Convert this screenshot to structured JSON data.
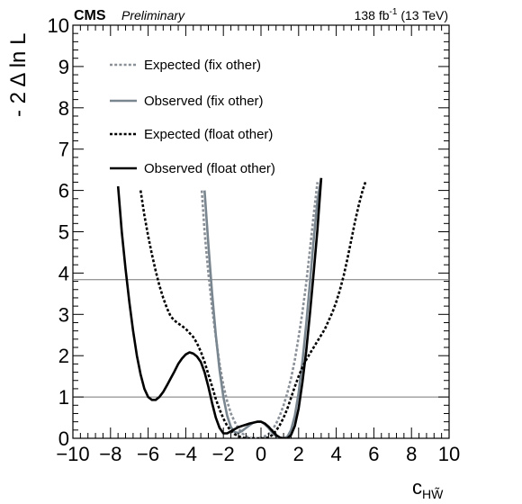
{
  "header": {
    "experiment": "CMS",
    "status": "Preliminary",
    "lumi_value": "138 fb",
    "lumi_exponent": "-1",
    "lumi_energy": " (13 TeV)"
  },
  "chart_data": {
    "type": "line",
    "title": "",
    "xlabel_base": "c",
    "xlabel_sub": "HW̃",
    "ylabel": "- 2 Δ ln L",
    "xlim": [
      -10,
      10
    ],
    "ylim": [
      0,
      10
    ],
    "x_major_ticks": [
      -10,
      -8,
      -6,
      -4,
      -2,
      0,
      2,
      4,
      6,
      8,
      10
    ],
    "x_tick_labels": [
      "−10",
      "−8",
      "−6",
      "−4",
      "−2",
      "0",
      "2",
      "4",
      "6",
      "8",
      "10"
    ],
    "y_major_ticks": [
      0,
      1,
      2,
      3,
      4,
      5,
      6,
      7,
      8,
      9,
      10
    ],
    "y_tick_labels": [
      "0",
      "1",
      "2",
      "3",
      "4",
      "5",
      "6",
      "7",
      "8",
      "9",
      "10"
    ],
    "reference_lines": [
      1.0,
      3.84
    ],
    "grid": false,
    "legend_position": "top-left",
    "series": [
      {
        "name": "Expected (fix other)",
        "color": "#8a9098",
        "style": "dotted",
        "x": [
          -3.15,
          -3.0,
          -2.8,
          -2.6,
          -2.4,
          -2.2,
          -2.0,
          -1.8,
          -1.6,
          -1.4,
          -1.2,
          -1.0,
          -0.8,
          -0.6,
          -0.4,
          -0.2,
          0.0,
          0.2,
          0.4,
          0.6,
          0.8,
          1.0,
          1.2,
          1.4,
          1.6,
          1.8,
          2.0,
          2.2,
          2.4,
          2.6,
          2.8,
          3.0
        ],
        "y": [
          6.0,
          5.0,
          4.0,
          3.15,
          2.45,
          1.8,
          1.28,
          0.9,
          0.6,
          0.4,
          0.24,
          0.12,
          0.05,
          0.01,
          0.0,
          0.0,
          0.01,
          0.05,
          0.1,
          0.2,
          0.35,
          0.55,
          0.8,
          1.1,
          1.45,
          1.9,
          2.45,
          3.05,
          3.75,
          4.55,
          5.4,
          6.2
        ]
      },
      {
        "name": "Observed (fix other)",
        "color": "#7a868f",
        "style": "solid",
        "x": [
          -3.0,
          -2.8,
          -2.6,
          -2.4,
          -2.2,
          -2.0,
          -1.8,
          -1.6,
          -1.4,
          -1.2,
          -1.0,
          -0.8,
          -0.6,
          -0.4,
          -0.2,
          0.0,
          0.2,
          0.4,
          0.6,
          0.8,
          1.0,
          1.2,
          1.4,
          1.6,
          1.8,
          2.0,
          2.2,
          2.4,
          2.6,
          2.8,
          3.0,
          3.2
        ],
        "y": [
          6.0,
          4.7,
          3.5,
          2.5,
          1.65,
          1.0,
          0.55,
          0.27,
          0.15,
          0.13,
          0.18,
          0.25,
          0.32,
          0.38,
          0.4,
          0.4,
          0.34,
          0.25,
          0.14,
          0.05,
          0.0,
          0.0,
          0.04,
          0.2,
          0.55,
          1.1,
          1.85,
          2.75,
          3.75,
          4.8,
          5.75,
          6.3
        ]
      },
      {
        "name": "Expected (float other)",
        "color": "#000000",
        "style": "dotted",
        "x": [
          -6.4,
          -6.2,
          -6.0,
          -5.8,
          -5.6,
          -5.4,
          -5.2,
          -5.0,
          -4.8,
          -4.6,
          -4.4,
          -4.2,
          -4.0,
          -3.8,
          -3.6,
          -3.4,
          -3.2,
          -3.0,
          -2.8,
          -2.6,
          -2.4,
          -2.2,
          -2.0,
          -1.8,
          -1.6,
          -1.4,
          -1.2,
          -1.0,
          -0.8,
          -0.6,
          -0.4,
          -0.2,
          0.0,
          0.2,
          0.4,
          0.6,
          0.8,
          1.0,
          1.2,
          1.4,
          1.6,
          1.8,
          2.0,
          2.2,
          2.4,
          2.6,
          2.8,
          3.0,
          3.2,
          3.4,
          3.6,
          3.8,
          4.0,
          4.2,
          4.4,
          4.6,
          4.8,
          5.0,
          5.2,
          5.4,
          5.55
        ],
        "y": [
          6.0,
          5.4,
          4.9,
          4.45,
          4.05,
          3.7,
          3.4,
          3.15,
          2.95,
          2.85,
          2.78,
          2.72,
          2.65,
          2.55,
          2.45,
          2.3,
          2.1,
          1.85,
          1.55,
          1.25,
          0.95,
          0.7,
          0.48,
          0.3,
          0.18,
          0.1,
          0.05,
          0.02,
          0.0,
          0.0,
          0.0,
          0.0,
          0.0,
          0.0,
          0.02,
          0.08,
          0.18,
          0.32,
          0.5,
          0.72,
          0.98,
          1.25,
          1.5,
          1.72,
          1.9,
          2.05,
          2.2,
          2.35,
          2.5,
          2.65,
          2.85,
          3.05,
          3.3,
          3.6,
          3.95,
          4.35,
          4.8,
          5.25,
          5.65,
          6.0,
          6.2
        ]
      },
      {
        "name": "Observed (float other)",
        "color": "#000000",
        "style": "solid",
        "x": [
          -7.6,
          -7.4,
          -7.2,
          -7.0,
          -6.8,
          -6.6,
          -6.4,
          -6.2,
          -6.0,
          -5.8,
          -5.6,
          -5.4,
          -5.2,
          -5.0,
          -4.8,
          -4.6,
          -4.4,
          -4.2,
          -4.0,
          -3.8,
          -3.6,
          -3.4,
          -3.2,
          -3.0,
          -2.8,
          -2.6,
          -2.4,
          -2.2,
          -2.0,
          -1.8,
          -1.6,
          -1.4,
          -1.2,
          -1.0,
          -0.8,
          -0.6,
          -0.4,
          -0.2,
          0.0,
          0.2,
          0.4,
          0.6,
          0.8,
          1.0,
          1.2,
          1.4,
          1.6,
          1.8,
          2.0,
          2.2,
          2.4,
          2.6,
          2.8,
          3.0,
          3.2
        ],
        "y": [
          6.1,
          5.0,
          4.1,
          3.3,
          2.6,
          2.0,
          1.55,
          1.2,
          1.0,
          0.93,
          0.93,
          1.0,
          1.12,
          1.28,
          1.45,
          1.62,
          1.8,
          1.93,
          2.03,
          2.08,
          2.05,
          1.98,
          1.85,
          1.6,
          1.25,
          0.85,
          0.5,
          0.25,
          0.12,
          0.12,
          0.17,
          0.22,
          0.27,
          0.3,
          0.33,
          0.36,
          0.38,
          0.4,
          0.4,
          0.36,
          0.28,
          0.18,
          0.08,
          0.02,
          0.0,
          0.0,
          0.08,
          0.3,
          0.72,
          1.35,
          2.1,
          3.0,
          4.0,
          5.05,
          6.3
        ]
      }
    ]
  }
}
